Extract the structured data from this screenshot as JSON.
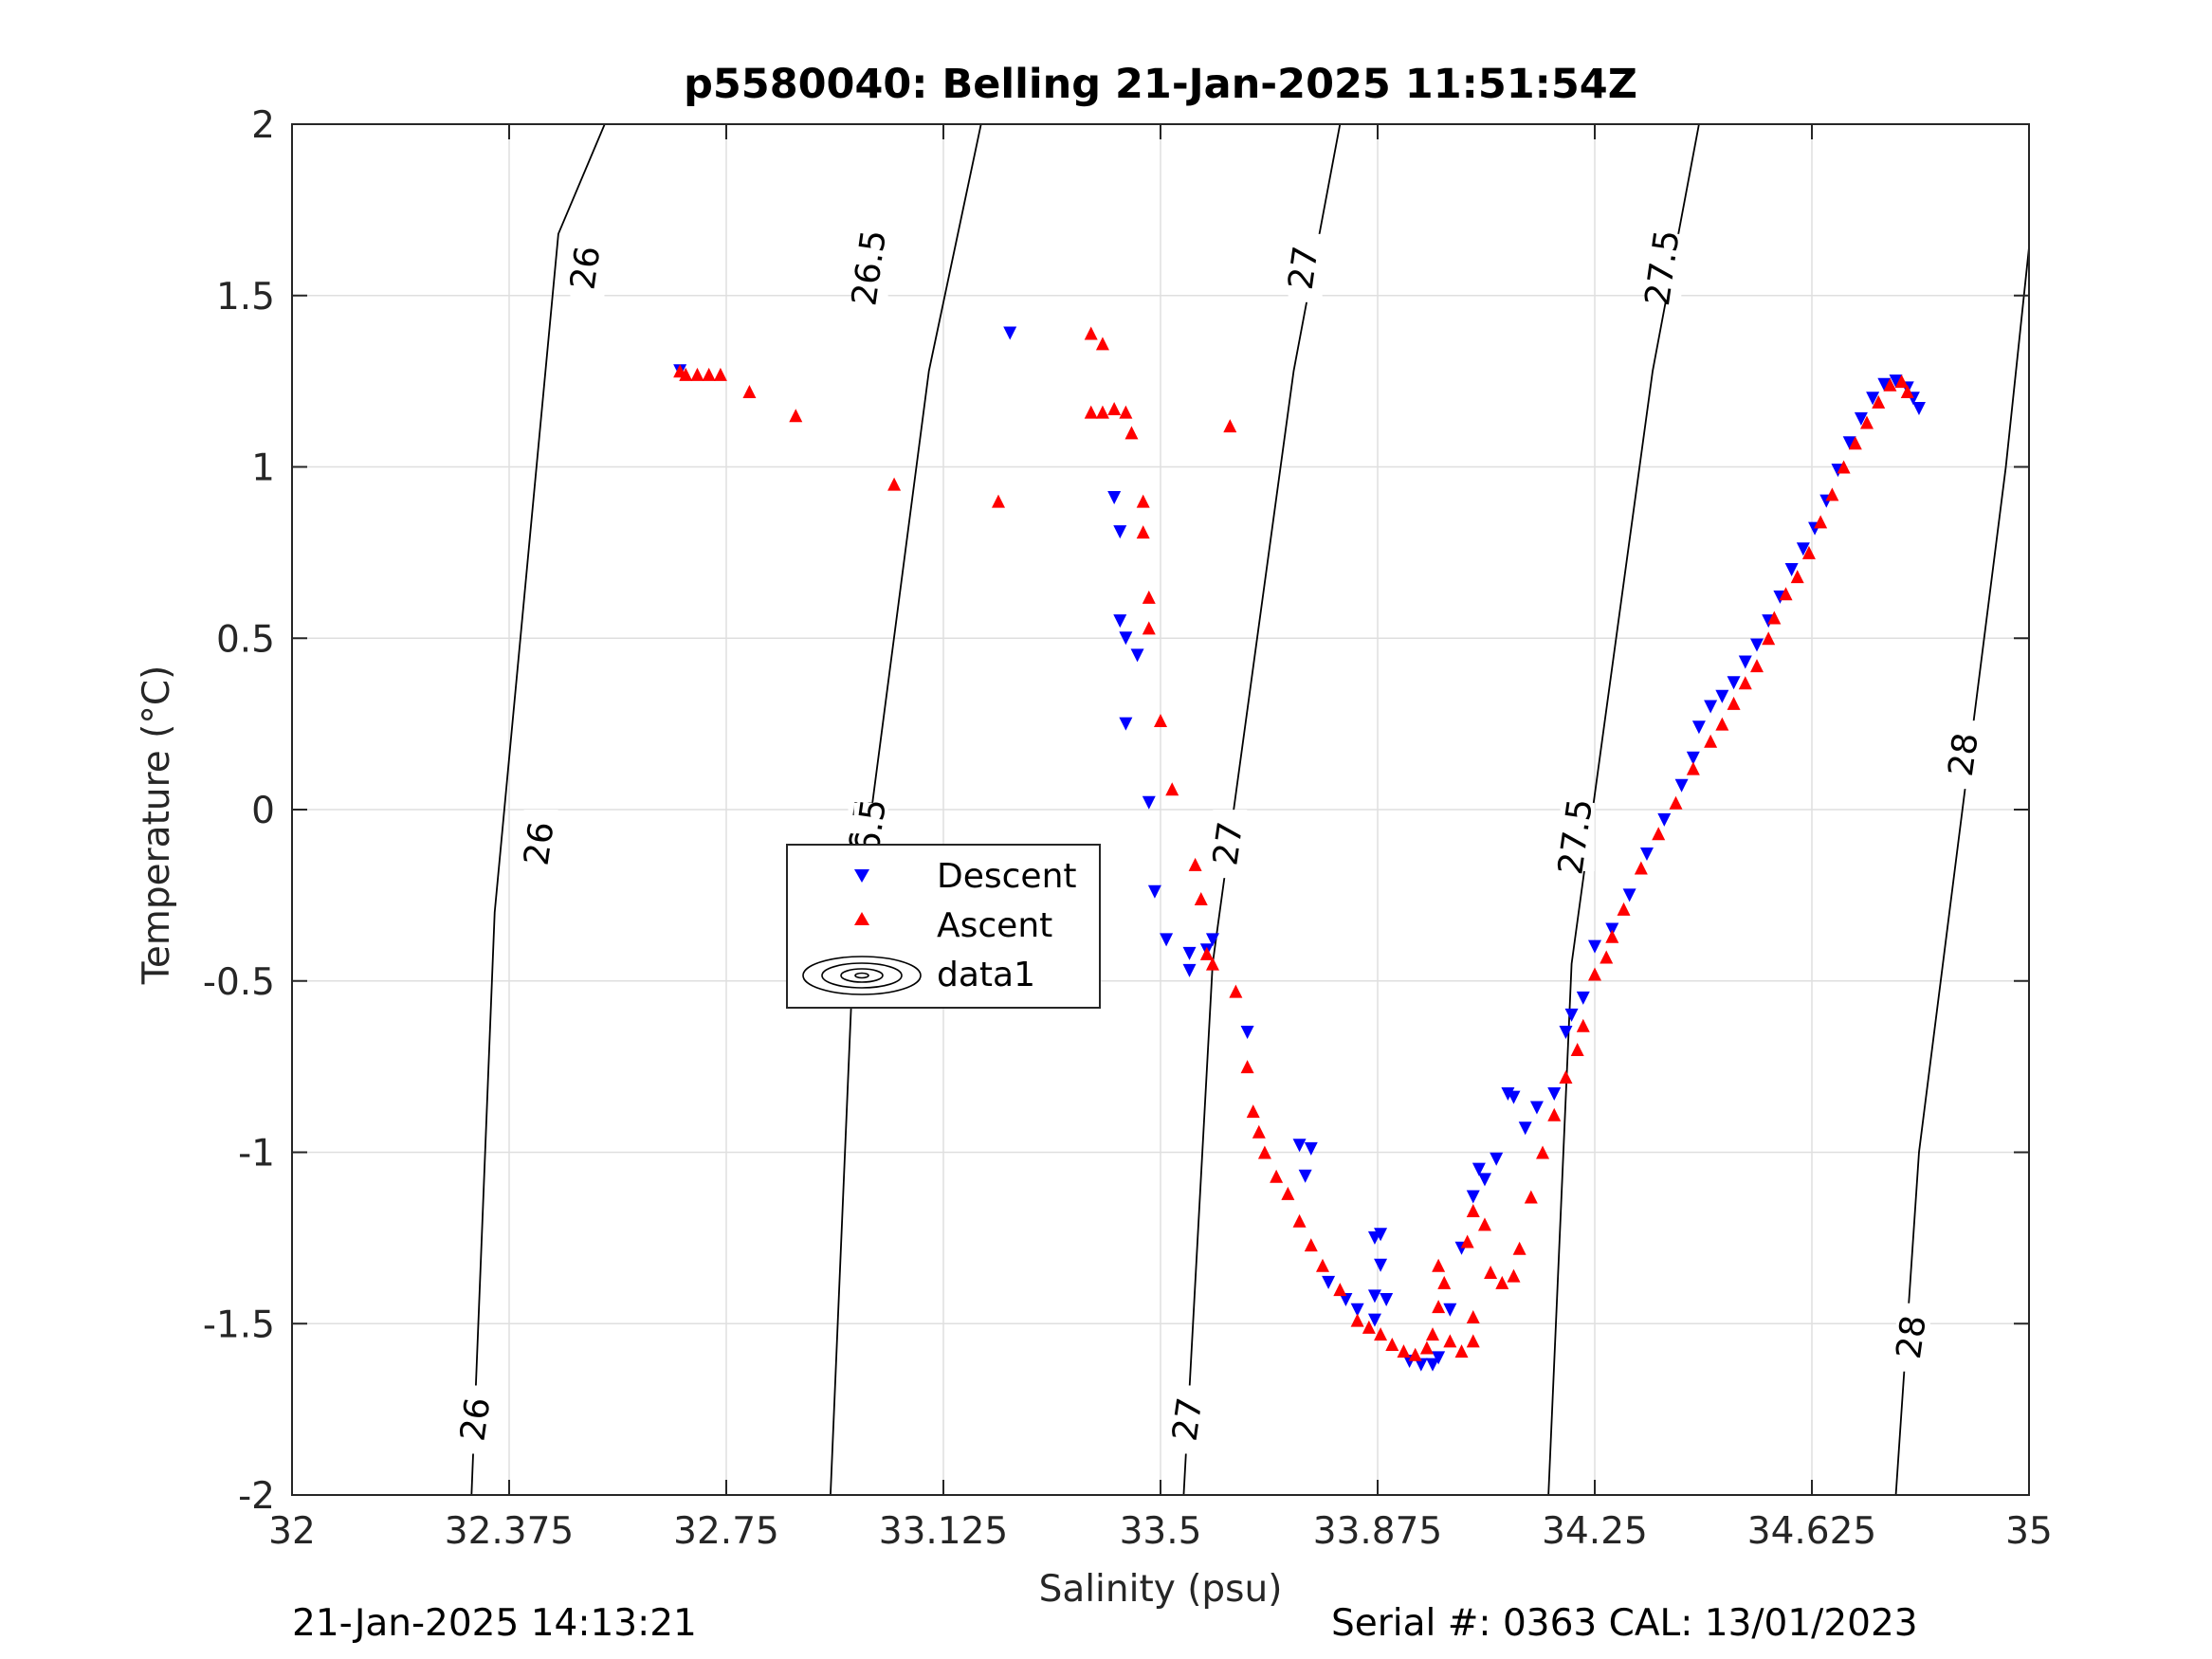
{
  "footer": {
    "timestamp": "21-Jan-2025 14:13:21",
    "serial_cal": "Serial #: 0363  CAL: 13/01/2023"
  },
  "chart_data": {
    "type": "scatter",
    "title": "p5580040: Belling 21-Jan-2025 11:51:54Z",
    "xlabel": "Salinity (psu)",
    "ylabel": "Temperature (°C)",
    "xlim": [
      32,
      35
    ],
    "ylim": [
      -2,
      2
    ],
    "xticks": [
      32,
      32.375,
      32.75,
      33.125,
      33.5,
      33.875,
      34.25,
      34.625,
      35
    ],
    "xtick_labels": [
      "32",
      "32.375",
      "32.75",
      "33.125",
      "33.5",
      "33.875",
      "34.25",
      "34.625",
      "35"
    ],
    "yticks": [
      -2,
      -1.5,
      -1,
      -0.5,
      0,
      0.5,
      1,
      1.5,
      2
    ],
    "ytick_labels": [
      "-2",
      "-1.5",
      "-1",
      "-0.5",
      "0",
      "0.5",
      "1",
      "1.5",
      "2"
    ],
    "grid": true,
    "legend": {
      "placement": "center-left",
      "entries": [
        "Descent",
        "Ascent",
        "data1"
      ]
    },
    "colors": {
      "descent": "#0000ff",
      "ascent": "#ff0000",
      "contour": "#000000"
    },
    "series": [
      {
        "name": "Descent",
        "marker": "triangle-down",
        "points": [
          [
            32.67,
            1.28
          ],
          [
            33.24,
            1.39
          ],
          [
            33.42,
            0.91
          ],
          [
            33.43,
            0.81
          ],
          [
            33.43,
            0.55
          ],
          [
            33.44,
            0.5
          ],
          [
            33.46,
            0.45
          ],
          [
            33.44,
            0.25
          ],
          [
            33.48,
            0.02
          ],
          [
            33.49,
            -0.24
          ],
          [
            33.51,
            -0.38
          ],
          [
            33.55,
            -0.47
          ],
          [
            33.55,
            -0.42
          ],
          [
            33.58,
            -0.41
          ],
          [
            33.59,
            -0.38
          ],
          [
            33.65,
            -0.65
          ],
          [
            33.74,
            -0.98
          ],
          [
            33.76,
            -0.99
          ],
          [
            33.75,
            -1.07
          ],
          [
            33.79,
            -1.38
          ],
          [
            33.82,
            -1.43
          ],
          [
            33.84,
            -1.46
          ],
          [
            33.87,
            -1.42
          ],
          [
            33.87,
            -1.49
          ],
          [
            33.89,
            -1.43
          ],
          [
            33.88,
            -1.33
          ],
          [
            33.87,
            -1.25
          ],
          [
            33.88,
            -1.24
          ],
          [
            33.93,
            -1.61
          ],
          [
            33.95,
            -1.62
          ],
          [
            33.97,
            -1.62
          ],
          [
            33.98,
            -1.6
          ],
          [
            34.0,
            -1.46
          ],
          [
            34.02,
            -1.28
          ],
          [
            34.04,
            -1.13
          ],
          [
            34.05,
            -1.05
          ],
          [
            34.06,
            -1.08
          ],
          [
            34.08,
            -1.02
          ],
          [
            34.1,
            -0.83
          ],
          [
            34.11,
            -0.84
          ],
          [
            34.13,
            -0.93
          ],
          [
            34.15,
            -0.87
          ],
          [
            34.18,
            -0.83
          ],
          [
            34.2,
            -0.65
          ],
          [
            34.21,
            -0.6
          ],
          [
            34.23,
            -0.55
          ],
          [
            34.25,
            -0.4
          ],
          [
            34.28,
            -0.35
          ],
          [
            34.31,
            -0.25
          ],
          [
            34.34,
            -0.13
          ],
          [
            34.37,
            -0.03
          ],
          [
            34.4,
            0.07
          ],
          [
            34.42,
            0.15
          ],
          [
            34.43,
            0.24
          ],
          [
            34.45,
            0.3
          ],
          [
            34.47,
            0.33
          ],
          [
            34.49,
            0.37
          ],
          [
            34.51,
            0.43
          ],
          [
            34.53,
            0.48
          ],
          [
            34.55,
            0.55
          ],
          [
            34.57,
            0.62
          ],
          [
            34.59,
            0.7
          ],
          [
            34.61,
            0.76
          ],
          [
            34.63,
            0.82
          ],
          [
            34.65,
            0.9
          ],
          [
            34.67,
            0.99
          ],
          [
            34.69,
            1.07
          ],
          [
            34.71,
            1.14
          ],
          [
            34.73,
            1.2
          ],
          [
            34.75,
            1.24
          ],
          [
            34.77,
            1.25
          ],
          [
            34.79,
            1.23
          ],
          [
            34.8,
            1.2
          ],
          [
            34.81,
            1.17
          ]
        ]
      },
      {
        "name": "Ascent",
        "marker": "triangle-up",
        "points": [
          [
            32.67,
            1.28
          ],
          [
            32.68,
            1.27
          ],
          [
            32.7,
            1.27
          ],
          [
            32.72,
            1.27
          ],
          [
            32.74,
            1.27
          ],
          [
            32.79,
            1.22
          ],
          [
            32.87,
            1.15
          ],
          [
            33.04,
            0.95
          ],
          [
            33.22,
            0.9
          ],
          [
            33.38,
            1.39
          ],
          [
            33.4,
            1.36
          ],
          [
            33.38,
            1.16
          ],
          [
            33.4,
            1.16
          ],
          [
            33.42,
            1.17
          ],
          [
            33.44,
            1.16
          ],
          [
            33.45,
            1.1
          ],
          [
            33.47,
            0.9
          ],
          [
            33.47,
            0.81
          ],
          [
            33.48,
            0.62
          ],
          [
            33.48,
            0.53
          ],
          [
            33.5,
            0.26
          ],
          [
            33.52,
            0.06
          ],
          [
            33.56,
            -0.16
          ],
          [
            33.57,
            -0.26
          ],
          [
            33.58,
            -0.42
          ],
          [
            33.59,
            -0.45
          ],
          [
            33.63,
            -0.53
          ],
          [
            33.65,
            -0.75
          ],
          [
            33.66,
            -0.88
          ],
          [
            33.67,
            -0.94
          ],
          [
            33.68,
            -1.0
          ],
          [
            33.7,
            -1.07
          ],
          [
            33.72,
            -1.12
          ],
          [
            33.74,
            -1.2
          ],
          [
            33.76,
            -1.27
          ],
          [
            33.78,
            -1.33
          ],
          [
            33.81,
            -1.4
          ],
          [
            33.84,
            -1.49
          ],
          [
            33.86,
            -1.51
          ],
          [
            33.88,
            -1.53
          ],
          [
            33.9,
            -1.56
          ],
          [
            33.92,
            -1.58
          ],
          [
            33.94,
            -1.59
          ],
          [
            33.96,
            -1.57
          ],
          [
            33.97,
            -1.53
          ],
          [
            33.98,
            -1.45
          ],
          [
            33.99,
            -1.38
          ],
          [
            33.98,
            -1.33
          ],
          [
            34.0,
            -1.55
          ],
          [
            34.02,
            -1.58
          ],
          [
            34.04,
            -1.55
          ],
          [
            34.04,
            -1.48
          ],
          [
            34.03,
            -1.26
          ],
          [
            34.04,
            -1.17
          ],
          [
            34.06,
            -1.21
          ],
          [
            34.07,
            -1.35
          ],
          [
            34.09,
            -1.38
          ],
          [
            34.11,
            -1.36
          ],
          [
            34.12,
            -1.28
          ],
          [
            34.14,
            -1.13
          ],
          [
            34.16,
            -1.0
          ],
          [
            34.18,
            -0.89
          ],
          [
            34.2,
            -0.78
          ],
          [
            34.22,
            -0.7
          ],
          [
            34.23,
            -0.63
          ],
          [
            34.25,
            -0.48
          ],
          [
            34.27,
            -0.43
          ],
          [
            34.28,
            -0.37
          ],
          [
            34.3,
            -0.29
          ],
          [
            34.33,
            -0.17
          ],
          [
            34.36,
            -0.07
          ],
          [
            34.39,
            0.02
          ],
          [
            34.42,
            0.12
          ],
          [
            34.45,
            0.2
          ],
          [
            34.47,
            0.25
          ],
          [
            34.49,
            0.31
          ],
          [
            34.51,
            0.37
          ],
          [
            34.53,
            0.42
          ],
          [
            34.55,
            0.5
          ],
          [
            34.56,
            0.56
          ],
          [
            34.58,
            0.63
          ],
          [
            34.6,
            0.68
          ],
          [
            34.62,
            0.75
          ],
          [
            34.64,
            0.84
          ],
          [
            34.66,
            0.92
          ],
          [
            34.68,
            1.0
          ],
          [
            34.7,
            1.07
          ],
          [
            34.72,
            1.13
          ],
          [
            34.74,
            1.19
          ],
          [
            34.76,
            1.24
          ],
          [
            34.78,
            1.25
          ],
          [
            34.79,
            1.22
          ],
          [
            33.62,
            1.12
          ]
        ]
      }
    ],
    "isopycnals": [
      {
        "label": "26",
        "line": [
          [
            32.31,
            -2.0
          ],
          [
            32.35,
            -0.3
          ],
          [
            32.46,
            1.68
          ],
          [
            32.54,
            2.0
          ]
        ],
        "label_positions": [
          [
            32.32,
            -1.78
          ],
          [
            32.43,
            -0.1
          ],
          [
            32.51,
            1.58
          ]
        ]
      },
      {
        "label": "26.5",
        "line": [
          [
            32.93,
            -2.0
          ],
          [
            32.97,
            -0.4
          ],
          [
            33.1,
            1.28
          ],
          [
            33.19,
            2.0
          ]
        ],
        "label_positions": [
          [
            32.99,
            -0.08
          ],
          [
            33.0,
            -0.08
          ],
          [
            33.0,
            1.58
          ]
        ]
      },
      {
        "label": "27",
        "line": [
          [
            33.54,
            -2.0
          ],
          [
            33.59,
            -0.45
          ],
          [
            33.73,
            1.28
          ],
          [
            33.81,
            2.0
          ]
        ],
        "label_positions": [
          [
            33.55,
            -1.78
          ],
          [
            33.62,
            -0.1
          ],
          [
            33.75,
            1.58
          ]
        ]
      },
      {
        "label": "27.5",
        "line": [
          [
            34.17,
            -2.0
          ],
          [
            34.21,
            -0.45
          ],
          [
            34.35,
            1.28
          ],
          [
            34.43,
            2.0
          ]
        ],
        "label_positions": [
          [
            34.22,
            -0.08
          ],
          [
            34.37,
            1.58
          ]
        ]
      },
      {
        "label": "28",
        "line": [
          [
            34.77,
            -2.0
          ],
          [
            34.81,
            -1.0
          ],
          [
            34.96,
            1.0
          ],
          [
            35.0,
            1.64
          ]
        ],
        "label_positions": [
          [
            34.8,
            -1.54
          ],
          [
            34.89,
            0.16
          ]
        ]
      }
    ]
  }
}
